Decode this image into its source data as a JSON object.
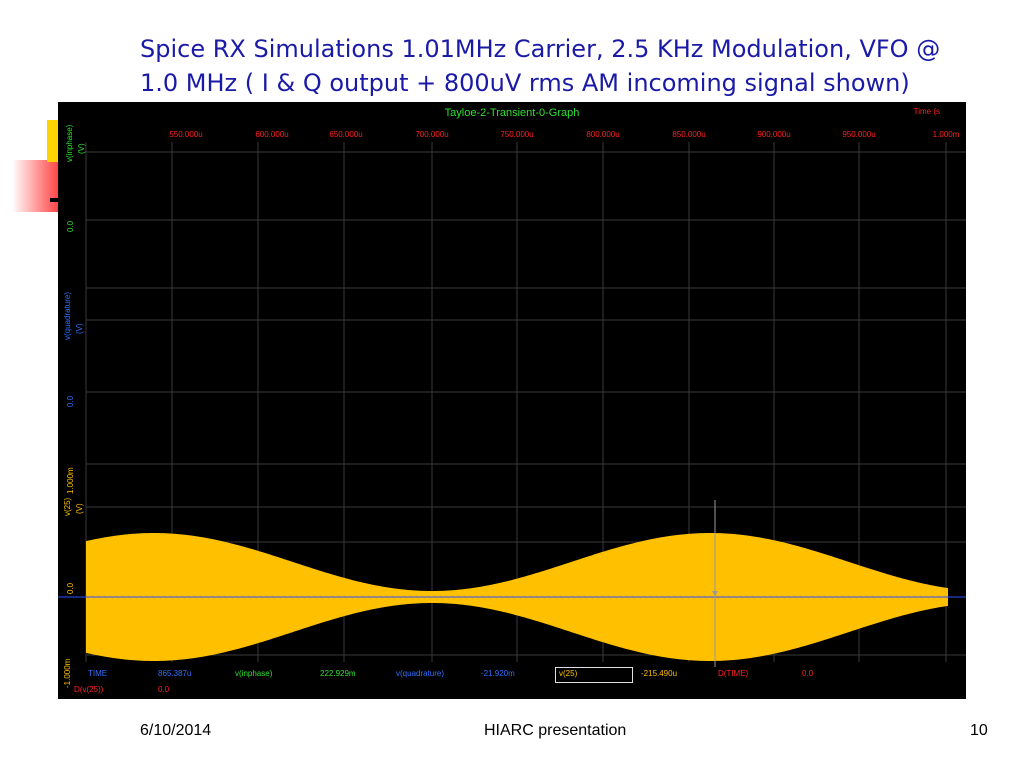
{
  "slide": {
    "title_line1": "Spice RX Simulations  1.01MHz Carrier, 2.5 KHz Modulation, VFO @",
    "title_line2": "1.0 MHz ( I & Q output +  800uV rms AM incoming signal shown)",
    "footer_date": "6/10/2014",
    "footer_center": "HIARC presentation",
    "footer_page": "10"
  },
  "graph": {
    "title": "Tayloe-2-Transient-0-Graph",
    "time_axis_label": "Time (s",
    "time_ticks": [
      "550.000u",
      "600.000u",
      "650.000u",
      "700.000u",
      "750.000u",
      "800.000u",
      "850.000u",
      "900.000u",
      "950.000u",
      "1.000m"
    ],
    "panels": [
      {
        "name": "v(inphase)",
        "unit": "(V)",
        "zero_label": "0.0",
        "color": "#30e030"
      },
      {
        "name": "v(quadrature)",
        "unit": "(V)",
        "zero_label": "0.0",
        "color": "#3070ff"
      },
      {
        "name": "v(25)",
        "unit": "(V)",
        "zero_label": "0.0",
        "color": "#ffc000",
        "upper_label": "1.000m",
        "lower_label": "-1.000m"
      }
    ],
    "readout": {
      "time_label": "TIME",
      "time_value": "865.387u",
      "inphase_label": "v(inphase)",
      "inphase_value": "222.929m",
      "quad_label": "v(quadrature)",
      "quad_value": "-21.920m",
      "v25_label": "v(25)",
      "v25_value": "-215.490u",
      "dtime_label": "D(TIME)",
      "dtime_value": "0.0",
      "dv25_label": "D(v(25))",
      "dv25_value": "0.0"
    },
    "colors": {
      "background": "#000000",
      "grid": "#3a3a3a",
      "axis_text": "#ff2020",
      "signal": "#ffc000",
      "cursor": "#8a8a8a"
    }
  }
}
